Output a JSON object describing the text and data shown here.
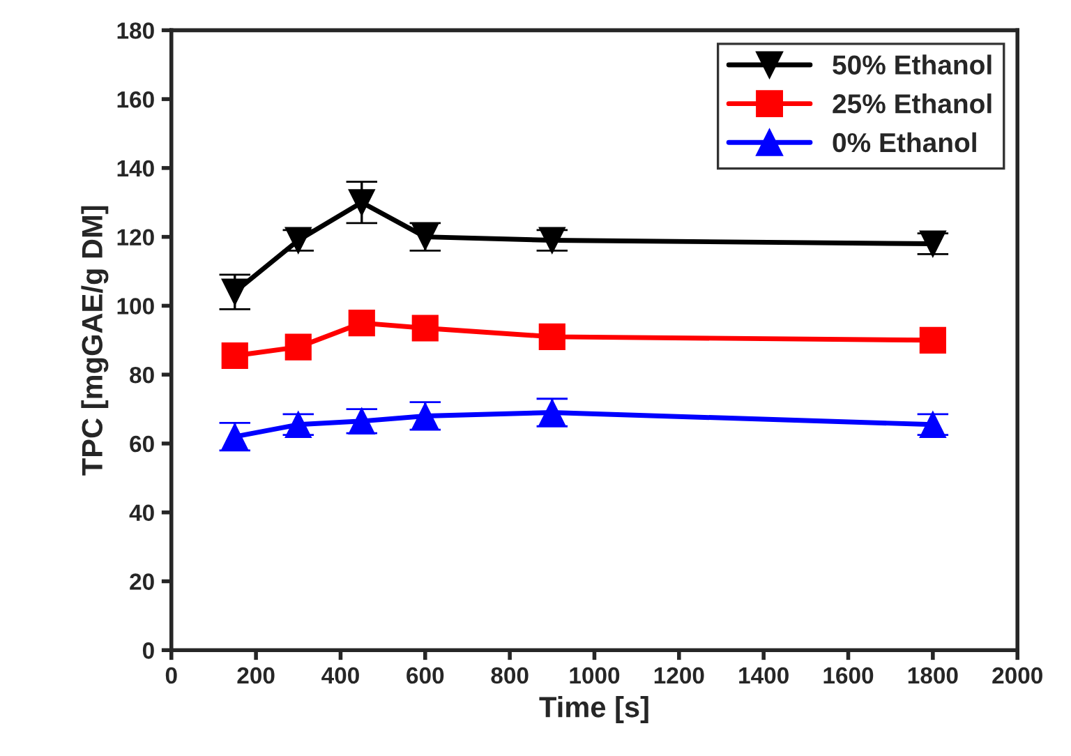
{
  "chart_data": {
    "type": "line",
    "xlabel": "Time [s]",
    "ylabel": "TPC [mgGAE/g DM]",
    "x": [
      150,
      300,
      450,
      600,
      900,
      1800
    ],
    "series": [
      {
        "name": "50% Ethanol",
        "color": "#000000",
        "marker": "triangle_down",
        "values": [
          104,
          119,
          130,
          120,
          119,
          118
        ],
        "errors": [
          5,
          3,
          6,
          4,
          3,
          3
        ]
      },
      {
        "name": "25% Ethanol",
        "color": "#ff0000",
        "marker": "square",
        "values": [
          85.5,
          88,
          95,
          93.5,
          91,
          90
        ]
      },
      {
        "name": "0% Ethanol",
        "color": "#0000ff",
        "marker": "triangle",
        "values": [
          62,
          65.5,
          66.5,
          68,
          69,
          65.5
        ],
        "errors": [
          4,
          3,
          3.5,
          4,
          4,
          3
        ]
      }
    ],
    "xlim": [
      0,
      2000
    ],
    "xticks": [
      0,
      200,
      400,
      600,
      800,
      1000,
      1200,
      1400,
      1600,
      1800,
      2000
    ],
    "ylim": [
      0,
      180
    ],
    "yticks": [
      0,
      20,
      40,
      60,
      80,
      100,
      120,
      140,
      160,
      180
    ],
    "legend": "top right",
    "grid": false,
    "line_style": "solid"
  }
}
